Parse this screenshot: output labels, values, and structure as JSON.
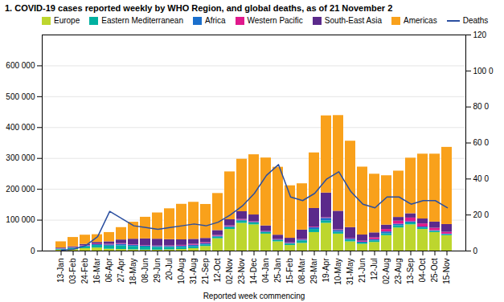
{
  "chart_data": {
    "type": "bar",
    "title": "1. COVID-19 cases reported weekly by WHO Region, and global deaths, as of 21 November 2",
    "xlabel": "Reported week commencing",
    "categories": [
      "13-Jan",
      "03-Feb",
      "24-Feb",
      "16-Mar",
      "06-Apr",
      "27-Apr",
      "18-May",
      "08-Jun",
      "29-Jun",
      "20-Jul",
      "10-Aug",
      "31-Aug",
      "21-Sep",
      "12-Oct",
      "02-Nov",
      "23-Nov",
      "14-Dec",
      "04-Jan",
      "25-Jan",
      "15-Feb",
      "08-Mar",
      "29-Mar",
      "19-Apr",
      "10-May",
      "31-May",
      "21-Jun",
      "12-Jul",
      "02-Aug",
      "23-Aug",
      "13-Sep",
      "04-Oct",
      "25-Oct",
      "15-Nov"
    ],
    "stacked": true,
    "grid": true,
    "legend": "upper left",
    "series": [
      {
        "name": "Europe",
        "color": "#BDD62E",
        "values": [
          3000,
          5000,
          8000,
          10000,
          6000,
          5000,
          4000,
          3000,
          3000,
          4000,
          5000,
          8000,
          15000,
          40000,
          70000,
          90000,
          85000,
          55000,
          30000,
          18000,
          25000,
          60000,
          90000,
          55000,
          30000,
          22000,
          28000,
          50000,
          75000,
          85000,
          70000,
          60000,
          50000
        ]
      },
      {
        "name": "Eastern Mediterranean",
        "color": "#00B0A0",
        "values": [
          3000,
          4000,
          6000,
          8000,
          10000,
          12000,
          11000,
          10000,
          9000,
          8000,
          7000,
          6000,
          5000,
          5000,
          6000,
          7000,
          6000,
          5000,
          4000,
          5000,
          8000,
          10000,
          8000,
          6000,
          5000,
          4000,
          5000,
          6000,
          7000,
          6000,
          5000,
          4000,
          3000
        ]
      },
      {
        "name": "Africa",
        "color": "#1B6FCC",
        "values": [
          1000,
          1000,
          2000,
          3000,
          4000,
          5000,
          4000,
          3000,
          3000,
          3000,
          4000,
          5000,
          4000,
          3000,
          3000,
          3000,
          2000,
          2000,
          2000,
          2000,
          3000,
          6000,
          8000,
          6000,
          4000,
          3000,
          4000,
          6000,
          5000,
          4000,
          3000,
          2000,
          2000
        ]
      },
      {
        "name": "Western Pacific",
        "color": "#E0198C",
        "values": [
          1000,
          1000,
          1500,
          2000,
          2000,
          2000,
          1500,
          1500,
          1500,
          2000,
          2500,
          3000,
          3000,
          2500,
          2500,
          2500,
          2000,
          1500,
          1500,
          1500,
          2000,
          2000,
          2000,
          2000,
          2000,
          3000,
          6000,
          8000,
          10000,
          12000,
          10000,
          8000,
          6000
        ]
      },
      {
        "name": "South-East Asia",
        "color": "#5B2A8B",
        "values": [
          2000,
          3000,
          4000,
          5000,
          8000,
          12000,
          18000,
          22000,
          22000,
          20000,
          18000,
          16000,
          14000,
          16000,
          20000,
          25000,
          22000,
          18000,
          14000,
          15000,
          30000,
          60000,
          80000,
          60000,
          35000,
          20000,
          16000,
          14000,
          12000,
          14000,
          16000,
          20000,
          25000
        ]
      },
      {
        "name": "Americas",
        "color": "#F9A11B",
        "values": [
          20000,
          30000,
          30000,
          25000,
          30000,
          40000,
          55000,
          70000,
          85000,
          100000,
          115000,
          120000,
          110000,
          120000,
          155000,
          170000,
          195000,
          220000,
          220000,
          170000,
          150000,
          180000,
          250000,
          310000,
          280000,
          220000,
          190000,
          160000,
          150000,
          180000,
          210000,
          220000,
          250000
        ]
      },
      {
        "name": "Deaths",
        "type": "line",
        "axis": "y2",
        "color": "#2B4FA0",
        "values": [
          500,
          1000,
          3000,
          8000,
          22000,
          18000,
          14000,
          13000,
          12000,
          13000,
          14000,
          15000,
          14000,
          16000,
          20000,
          25000,
          32000,
          42000,
          48000,
          30000,
          28000,
          32000,
          40000,
          44000,
          33000,
          26000,
          24000,
          30000,
          30000,
          26000,
          28000,
          28000,
          24000
        ]
      }
    ],
    "ylim": [
      0,
      700000
    ],
    "yticks": [
      0,
      {
        "value": 100000,
        "label": "100 000"
      },
      {
        "value": 200000,
        "label": "200 000"
      },
      {
        "value": 300000,
        "label": "300 000"
      },
      {
        "value": 400000,
        "label": "400 000"
      },
      {
        "value": 500000,
        "label": "500 000"
      },
      {
        "value": 600000,
        "label": "600 000"
      }
    ],
    "y2lim": [
      0,
      120000
    ],
    "y2ticks": [
      0,
      {
        "value": 20000,
        "label": "20 0"
      },
      {
        "value": 40000,
        "label": "40 0"
      },
      {
        "value": 60000,
        "label": "60 0"
      },
      {
        "value": 80000,
        "label": "80 0"
      },
      {
        "value": 100000,
        "label": "100 0"
      },
      {
        "value": 120000,
        "label": "120"
      }
    ]
  }
}
